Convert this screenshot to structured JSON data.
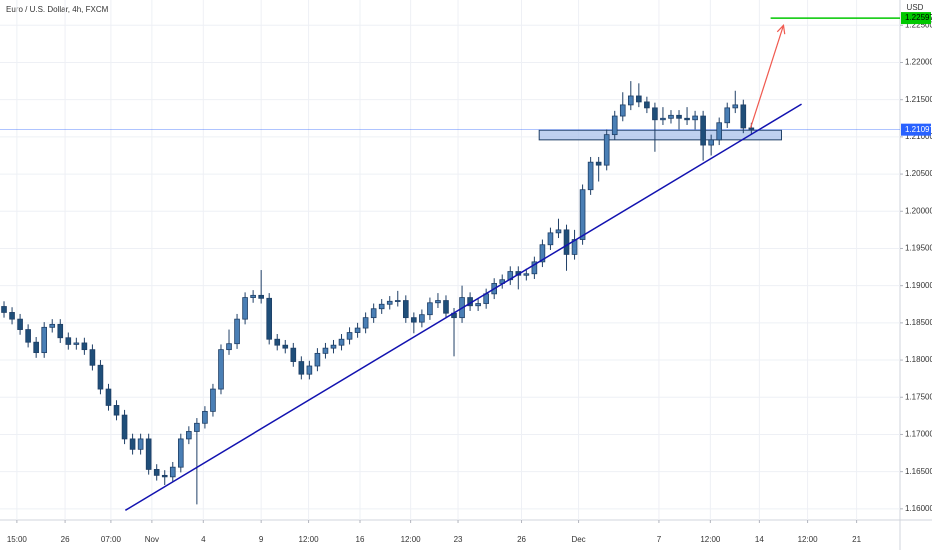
{
  "chart_data": {
    "type": "candlestick",
    "title": "Euro / U.S. Dollar, 4h, FXCM",
    "currency": "USD",
    "xlim": [
      0,
      112
    ],
    "xticks": [
      {
        "value": 2.1,
        "label": "15:00"
      },
      {
        "value": 8.1,
        "label": "26"
      },
      {
        "value": 13.8,
        "label": "07:00"
      },
      {
        "value": 18.9,
        "label": "Nov"
      },
      {
        "value": 25.3,
        "label": "4"
      },
      {
        "value": 32.5,
        "label": "9"
      },
      {
        "value": 38.4,
        "label": "12:00"
      },
      {
        "value": 44.8,
        "label": "16"
      },
      {
        "value": 51.1,
        "label": "12:00"
      },
      {
        "value": 57,
        "label": "23"
      },
      {
        "value": 64.9,
        "label": "26"
      },
      {
        "value": 72,
        "label": "Dec"
      },
      {
        "value": 82,
        "label": "7"
      },
      {
        "value": 88.4,
        "label": "12:00"
      },
      {
        "value": 94.5,
        "label": "14"
      },
      {
        "value": 100.5,
        "label": "12:00"
      },
      {
        "value": 106.6,
        "label": "21"
      }
    ],
    "ylim": [
      1.1585,
      1.2284
    ],
    "yticks": [
      {
        "value": 1.16,
        "label": "1.16000"
      },
      {
        "value": 1.165,
        "label": "1.16500"
      },
      {
        "value": 1.17,
        "label": "1.17000"
      },
      {
        "value": 1.175,
        "label": "1.17500"
      },
      {
        "value": 1.18,
        "label": "1.18000"
      },
      {
        "value": 1.185,
        "label": "1.18500"
      },
      {
        "value": 1.19,
        "label": "1.19000"
      },
      {
        "value": 1.195,
        "label": "1.19500"
      },
      {
        "value": 1.2,
        "label": "1.20000"
      },
      {
        "value": 1.205,
        "label": "1.20500"
      },
      {
        "value": 1.21,
        "label": "1.21000"
      },
      {
        "value": 1.215,
        "label": "1.21500"
      },
      {
        "value": 1.22,
        "label": "1.22000"
      },
      {
        "value": 1.225,
        "label": "1.22500"
      }
    ],
    "grid": true,
    "series": [
      {
        "up_color": "#4a7fb5",
        "down_color": "#1f4e79",
        "open": [
          1.1872,
          1.1864,
          1.1855,
          1.1841,
          1.1824,
          1.181,
          1.1844,
          1.1848,
          1.183,
          1.1821,
          1.1823,
          1.1814,
          1.1793,
          1.1761,
          1.1739,
          1.1726,
          1.1694,
          1.168,
          1.1694,
          1.1653,
          1.1645,
          1.1643,
          1.1656,
          1.1694,
          1.1704,
          1.1715,
          1.1731,
          1.1761,
          1.1814,
          1.1822,
          1.1855,
          1.1884,
          1.1887,
          1.1883,
          1.1828,
          1.182,
          1.1816,
          1.1798,
          1.1781,
          1.1792,
          1.1809,
          1.1816,
          1.182,
          1.1828,
          1.1837,
          1.1843,
          1.1857,
          1.1869,
          1.1875,
          1.1879,
          1.188,
          1.1857,
          1.1851,
          1.1861,
          1.1877,
          1.188,
          1.1863,
          1.1857,
          1.1884,
          1.1873,
          1.1876,
          1.1889,
          1.1903,
          1.1908,
          1.1919,
          1.1914,
          1.1916,
          1.1932,
          1.1955,
          1.1971,
          1.1975,
          1.1942,
          1.1962,
          1.2029,
          1.2066,
          1.2062,
          1.2103,
          1.2128,
          1.2143,
          1.2155,
          1.2147,
          1.2139,
          1.2123,
          1.2125,
          1.2129,
          1.2125,
          1.2123,
          1.2128,
          1.2089,
          1.2096,
          1.2119,
          1.2139,
          1.2143,
          1.2112
        ],
        "high": [
          1.1879,
          1.1871,
          1.1862,
          1.1848,
          1.1831,
          1.1851,
          1.1855,
          1.1855,
          1.1837,
          1.183,
          1.183,
          1.1821,
          1.18,
          1.1768,
          1.1746,
          1.1733,
          1.1701,
          1.1701,
          1.1701,
          1.166,
          1.1652,
          1.1663,
          1.1701,
          1.1711,
          1.1722,
          1.1738,
          1.1768,
          1.1821,
          1.1841,
          1.1862,
          1.1891,
          1.1894,
          1.1921,
          1.189,
          1.1835,
          1.1827,
          1.1823,
          1.1805,
          1.1799,
          1.1816,
          1.1823,
          1.1827,
          1.1835,
          1.1844,
          1.185,
          1.1864,
          1.1876,
          1.1882,
          1.1886,
          1.1893,
          1.1887,
          1.1864,
          1.1868,
          1.1884,
          1.189,
          1.1887,
          1.187,
          1.19,
          1.1891,
          1.1883,
          1.1896,
          1.191,
          1.1915,
          1.1926,
          1.1926,
          1.1923,
          1.1939,
          1.1962,
          1.1978,
          1.199,
          1.1982,
          1.1975,
          1.2036,
          1.2073,
          1.2073,
          1.211,
          1.2135,
          1.216,
          1.2175,
          1.2172,
          1.2154,
          1.2146,
          1.214,
          1.2136,
          1.2136,
          1.214,
          1.2135,
          1.2135,
          1.2103,
          1.2126,
          1.2146,
          1.2162,
          1.215,
          1.2119
        ],
        "low": [
          1.1857,
          1.1848,
          1.1834,
          1.1817,
          1.1803,
          1.1803,
          1.1837,
          1.1823,
          1.1814,
          1.1814,
          1.1807,
          1.1786,
          1.1754,
          1.1732,
          1.1719,
          1.1687,
          1.1673,
          1.1673,
          1.1646,
          1.1638,
          1.1632,
          1.1636,
          1.1649,
          1.1687,
          1.1606,
          1.1708,
          1.1724,
          1.1754,
          1.1807,
          1.1815,
          1.1848,
          1.1877,
          1.1876,
          1.1821,
          1.1813,
          1.1809,
          1.1791,
          1.1774,
          1.1774,
          1.1785,
          1.1802,
          1.1809,
          1.1813,
          1.1821,
          1.183,
          1.1836,
          1.185,
          1.1862,
          1.1868,
          1.1872,
          1.185,
          1.1836,
          1.1844,
          1.1854,
          1.187,
          1.1856,
          1.1805,
          1.185,
          1.1866,
          1.1866,
          1.1869,
          1.1882,
          1.1896,
          1.1901,
          1.1895,
          1.1907,
          1.1909,
          1.1925,
          1.1948,
          1.1964,
          1.192,
          1.1935,
          1.1955,
          1.2022,
          1.204,
          1.2055,
          1.2096,
          1.2121,
          1.2136,
          1.214,
          1.2132,
          1.208,
          1.2116,
          1.2118,
          1.211,
          1.2116,
          1.211,
          1.2068,
          1.2075,
          1.2089,
          1.2112,
          1.2132,
          1.2105,
          1.2103
        ],
        "close": [
          1.1864,
          1.1855,
          1.1841,
          1.1824,
          1.181,
          1.1844,
          1.1848,
          1.183,
          1.1821,
          1.1823,
          1.1814,
          1.1793,
          1.1761,
          1.1739,
          1.1726,
          1.1694,
          1.168,
          1.1694,
          1.1653,
          1.1645,
          1.1643,
          1.1656,
          1.1694,
          1.1704,
          1.1715,
          1.1731,
          1.1761,
          1.1814,
          1.1822,
          1.1855,
          1.1884,
          1.1887,
          1.1883,
          1.1828,
          1.182,
          1.1816,
          1.1798,
          1.1781,
          1.1792,
          1.1809,
          1.1816,
          1.182,
          1.1828,
          1.1837,
          1.1843,
          1.1857,
          1.1869,
          1.1875,
          1.1879,
          1.188,
          1.1857,
          1.1851,
          1.1861,
          1.1877,
          1.188,
          1.1863,
          1.1857,
          1.1884,
          1.1873,
          1.1876,
          1.1889,
          1.1903,
          1.1908,
          1.1919,
          1.1914,
          1.1916,
          1.1932,
          1.1955,
          1.1971,
          1.1975,
          1.1942,
          1.1962,
          1.2029,
          1.2066,
          1.2062,
          1.2103,
          1.2128,
          1.2143,
          1.2155,
          1.2147,
          1.2139,
          1.2123,
          1.2125,
          1.2129,
          1.2125,
          1.2123,
          1.2128,
          1.2089,
          1.2096,
          1.2119,
          1.2139,
          1.2143,
          1.2112,
          1.211
        ]
      }
    ],
    "price_line": {
      "value": 1.21097,
      "color": "#2962ff"
    },
    "target_line": {
      "value": 1.22597,
      "x": [
        95.9,
        112
      ],
      "color": "#00c800"
    },
    "trend_line": {
      "x": [
        15.6,
        99.75
      ],
      "y": [
        1.1598,
        1.2144
      ],
      "color": "#1212b0"
    },
    "zone": {
      "x": [
        67.1,
        97.25
      ],
      "y": [
        1.2096,
        1.2109
      ],
      "color": "#a9c2ea"
    },
    "arrow": {
      "x": [
        93.4,
        97.5
      ],
      "y": [
        1.2112,
        1.225
      ],
      "color": "#f05a50"
    }
  }
}
